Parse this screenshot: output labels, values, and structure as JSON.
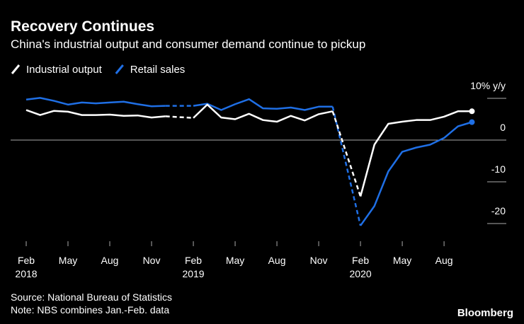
{
  "chart_data": {
    "type": "line",
    "title": "Recovery Continues",
    "subtitle": "China's industrial output and consumer demand continue to pickup",
    "categories": [
      "Feb",
      null,
      null,
      "May",
      null,
      null,
      "Aug",
      null,
      null,
      "Nov",
      null,
      null,
      "Feb",
      null,
      null,
      "May",
      null,
      null,
      "Aug",
      null,
      null,
      "Nov",
      null,
      null,
      "Feb",
      null,
      null,
      "May",
      null,
      null,
      "Aug",
      null,
      null
    ],
    "years": [
      "2018",
      "2019",
      "2020"
    ],
    "series": [
      {
        "name": "Industrial output",
        "color": "#ffffff",
        "values": [
          7.2,
          6.0,
          7.0,
          6.8,
          6.0,
          6.0,
          6.1,
          5.8,
          5.9,
          5.4,
          5.7,
          null,
          5.3,
          8.5,
          5.4,
          5.0,
          6.3,
          4.8,
          4.4,
          5.8,
          4.7,
          6.2,
          6.9,
          null,
          -13.5,
          -1.1,
          3.9,
          4.4,
          4.8,
          4.8,
          5.6,
          6.9,
          6.9
        ]
      },
      {
        "name": "Retail sales",
        "color": "#1f6fe5",
        "values": [
          9.7,
          10.1,
          9.4,
          8.5,
          9.0,
          8.8,
          9.0,
          9.2,
          8.6,
          8.1,
          8.2,
          null,
          8.2,
          8.7,
          7.2,
          8.6,
          9.8,
          7.6,
          7.5,
          7.8,
          7.2,
          8.0,
          8.0,
          null,
          -20.5,
          -15.8,
          -7.5,
          -2.8,
          -1.8,
          -1.1,
          0.5,
          3.3,
          4.3
        ]
      }
    ],
    "ylim": [
      -24,
      14
    ],
    "yticks": [
      {
        "value": 10,
        "label": "10% y/y"
      },
      0,
      -10,
      -20
    ],
    "source": "Source: National Bureau of Statistics",
    "note": "Note: NBS combines Jan.-Feb. data",
    "brand": "Bloomberg"
  }
}
